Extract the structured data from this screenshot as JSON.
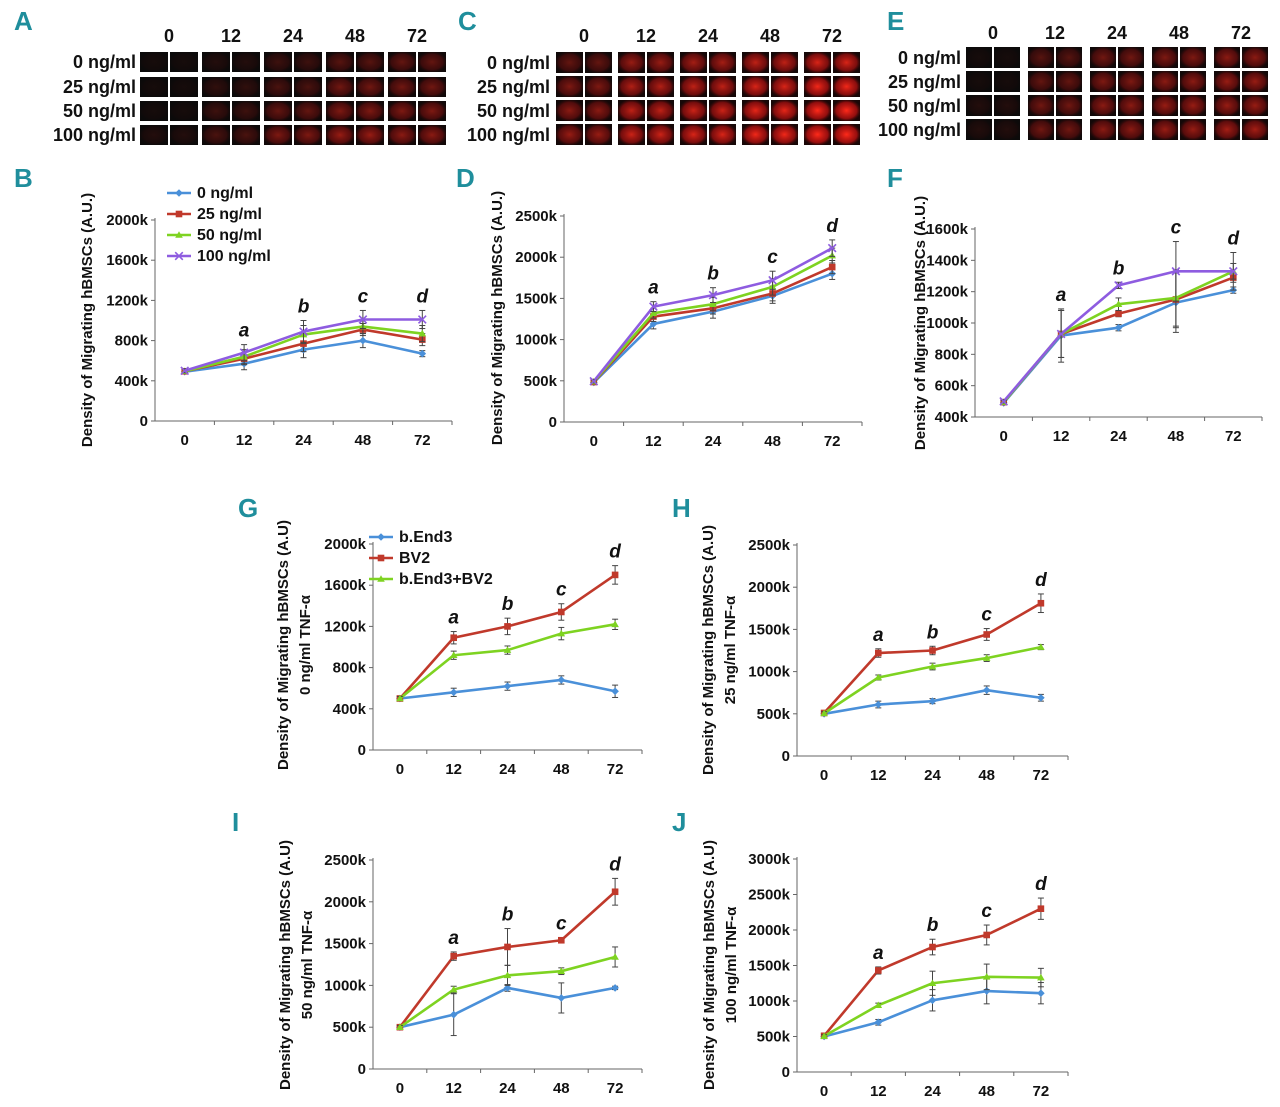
{
  "colors": {
    "panel_label": "#1f8e9c",
    "series": [
      "#4a90d9",
      "#c0392b",
      "#7ed321",
      "#8e5ce0"
    ],
    "axis": "#666666",
    "micro_bg": "#0a0a0a",
    "micro_cell": "#c81010"
  },
  "panel_labels": [
    "A",
    "B",
    "C",
    "D",
    "E",
    "F",
    "G",
    "H",
    "I",
    "J"
  ],
  "micrographs": [
    {
      "panel": "A",
      "time_headers": [
        "0",
        "12",
        "24",
        "48",
        "72"
      ],
      "row_labels": [
        "0 ng/ml",
        "25 ng/ml",
        "50 ng/ml",
        "100 ng/ml"
      ],
      "intensity": [
        [
          0.05,
          0.1,
          0.2,
          0.3,
          0.35
        ],
        [
          0.05,
          0.15,
          0.25,
          0.4,
          0.4
        ],
        [
          0.05,
          0.2,
          0.35,
          0.45,
          0.45
        ],
        [
          0.1,
          0.25,
          0.45,
          0.55,
          0.5
        ]
      ]
    },
    {
      "panel": "C",
      "time_headers": [
        "0",
        "12",
        "24",
        "48",
        "72"
      ],
      "row_labels": [
        "0 ng/ml",
        "25 ng/ml",
        "50 ng/ml",
        "100 ng/ml"
      ],
      "intensity": [
        [
          0.35,
          0.55,
          0.6,
          0.7,
          0.8
        ],
        [
          0.45,
          0.65,
          0.7,
          0.8,
          0.9
        ],
        [
          0.5,
          0.7,
          0.75,
          0.85,
          0.95
        ],
        [
          0.55,
          0.75,
          0.8,
          0.9,
          1.0
        ]
      ]
    },
    {
      "panel": "E",
      "time_headers": [
        "0",
        "12",
        "24",
        "48",
        "72"
      ],
      "row_labels": [
        "0 ng/ml",
        "25 ng/ml",
        "50 ng/ml",
        "100 ng/ml"
      ],
      "intensity": [
        [
          0.05,
          0.3,
          0.4,
          0.45,
          0.5
        ],
        [
          0.05,
          0.35,
          0.45,
          0.5,
          0.55
        ],
        [
          0.1,
          0.4,
          0.5,
          0.55,
          0.55
        ],
        [
          0.1,
          0.4,
          0.5,
          0.55,
          0.6
        ]
      ]
    }
  ],
  "chart_data": [
    {
      "panel": "B",
      "type": "line",
      "x": [
        "0",
        "12",
        "24",
        "48",
        "72"
      ],
      "ylim": [
        0,
        2000000
      ],
      "yticks": [
        "0",
        "400k",
        "800k",
        "1200k",
        "1600k",
        "2000k"
      ],
      "ylabel": [
        "Density of Migrating hBMSCs (A.U.)"
      ],
      "legend": true,
      "series": [
        {
          "name": "0 ng/ml",
          "values": [
            490000,
            570000,
            710000,
            800000,
            670000
          ]
        },
        {
          "name": "25 ng/ml",
          "values": [
            495000,
            620000,
            770000,
            910000,
            810000
          ]
        },
        {
          "name": "50 ng/ml",
          "values": [
            495000,
            640000,
            860000,
            940000,
            870000
          ]
        },
        {
          "name": "100 ng/ml",
          "values": [
            500000,
            680000,
            890000,
            1010000,
            1010000
          ]
        }
      ],
      "error": [
        [
          20000,
          60000,
          80000,
          70000,
          30000
        ],
        [
          20000,
          60000,
          80000,
          60000,
          60000
        ],
        [
          20000,
          70000,
          90000,
          70000,
          80000
        ],
        [
          20000,
          80000,
          110000,
          90000,
          90000
        ]
      ],
      "annotations": [
        "",
        "a",
        "b",
        "c",
        "d"
      ]
    },
    {
      "panel": "D",
      "type": "line",
      "x": [
        "0",
        "12",
        "24",
        "48",
        "72"
      ],
      "ylim": [
        0,
        2500000
      ],
      "yticks": [
        "0",
        "500k",
        "1000k",
        "1500k",
        "2000k",
        "2500k"
      ],
      "ylabel": [
        "Density of Migrating hBMSCs (A.U.)"
      ],
      "legend": false,
      "series": [
        {
          "name": "0 ng/ml",
          "values": [
            480000,
            1190000,
            1340000,
            1530000,
            1800000
          ]
        },
        {
          "name": "25 ng/ml",
          "values": [
            485000,
            1280000,
            1380000,
            1560000,
            1880000
          ]
        },
        {
          "name": "50 ng/ml",
          "values": [
            490000,
            1320000,
            1430000,
            1640000,
            2020000
          ]
        },
        {
          "name": "100 ng/ml",
          "values": [
            495000,
            1400000,
            1540000,
            1720000,
            2110000
          ]
        }
      ],
      "error": [
        [
          20000,
          60000,
          80000,
          90000,
          70000
        ],
        [
          20000,
          60000,
          70000,
          90000,
          80000
        ],
        [
          20000,
          60000,
          80000,
          100000,
          90000
        ],
        [
          20000,
          60000,
          90000,
          110000,
          100000
        ]
      ],
      "annotations": [
        "",
        "a",
        "b",
        "c",
        "d"
      ]
    },
    {
      "panel": "F",
      "type": "line",
      "x": [
        "0",
        "12",
        "24",
        "48",
        "72"
      ],
      "ylim": [
        400000,
        1600000
      ],
      "yticks": [
        "400k",
        "600k",
        "800k",
        "1000k",
        "1200k",
        "1400k",
        "1600k"
      ],
      "ylabel": [
        "Density of Migrating hBMSCs (A.U.)"
      ],
      "legend": false,
      "series": [
        {
          "name": "0 ng/ml",
          "values": [
            490000,
            920000,
            970000,
            1130000,
            1210000
          ]
        },
        {
          "name": "25 ng/ml",
          "values": [
            495000,
            930000,
            1060000,
            1150000,
            1290000
          ]
        },
        {
          "name": "50 ng/ml",
          "values": [
            495000,
            930000,
            1120000,
            1160000,
            1330000
          ]
        },
        {
          "name": "100 ng/ml",
          "values": [
            500000,
            930000,
            1240000,
            1330000,
            1330000
          ]
        }
      ],
      "error": [
        [
          10000,
          170000,
          20000,
          190000,
          20000
        ],
        [
          10000,
          150000,
          20000,
          180000,
          30000
        ],
        [
          10000,
          150000,
          40000,
          180000,
          50000
        ],
        [
          10000,
          150000,
          20000,
          190000,
          120000
        ]
      ],
      "annotations": [
        "",
        "a",
        "b",
        "c",
        "d"
      ]
    },
    {
      "panel": "G",
      "type": "line",
      "x": [
        "0",
        "12",
        "24",
        "48",
        "72"
      ],
      "ylim": [
        0,
        2000000
      ],
      "yticks": [
        "0",
        "400k",
        "800k",
        "1200k",
        "1600k",
        "2000k"
      ],
      "ylabel": [
        "Density of Migrating hBMSCs (A.U)",
        "0 ng/ml TNF-α"
      ],
      "legend": true,
      "series": [
        {
          "name": "b.End3",
          "values": [
            500000,
            560000,
            620000,
            680000,
            570000
          ]
        },
        {
          "name": "BV2",
          "values": [
            500000,
            1090000,
            1200000,
            1340000,
            1700000
          ]
        },
        {
          "name": "b.End3+BV2",
          "values": [
            500000,
            920000,
            970000,
            1130000,
            1220000
          ]
        }
      ],
      "error": [
        [
          20000,
          40000,
          40000,
          40000,
          60000
        ],
        [
          20000,
          60000,
          80000,
          80000,
          90000
        ],
        [
          20000,
          40000,
          40000,
          60000,
          50000
        ]
      ],
      "annotations": [
        "",
        "a",
        "b",
        "c",
        "d"
      ]
    },
    {
      "panel": "H",
      "type": "line",
      "x": [
        "0",
        "12",
        "24",
        "48",
        "72"
      ],
      "ylim": [
        0,
        2500000
      ],
      "yticks": [
        "0",
        "500k",
        "1000k",
        "1500k",
        "2000k",
        "2500k"
      ],
      "ylabel": [
        "Density of Migrating hBMSCs (A.U)",
        "25 ng/ml TNF-α"
      ],
      "legend": false,
      "series": [
        {
          "name": "b.End3",
          "values": [
            500000,
            610000,
            650000,
            780000,
            690000
          ]
        },
        {
          "name": "BV2",
          "values": [
            510000,
            1220000,
            1250000,
            1440000,
            1810000
          ]
        },
        {
          "name": "b.End3+BV2",
          "values": [
            505000,
            930000,
            1060000,
            1160000,
            1290000
          ]
        }
      ],
      "error": [
        [
          20000,
          40000,
          30000,
          50000,
          40000
        ],
        [
          20000,
          50000,
          50000,
          70000,
          110000
        ],
        [
          20000,
          30000,
          40000,
          40000,
          30000
        ]
      ],
      "annotations": [
        "",
        "a",
        "b",
        "c",
        "d"
      ]
    },
    {
      "panel": "I",
      "type": "line",
      "x": [
        "0",
        "12",
        "24",
        "48",
        "72"
      ],
      "ylim": [
        0,
        2500000
      ],
      "yticks": [
        "0",
        "500k",
        "1000k",
        "1500k",
        "2000k",
        "2500k"
      ],
      "ylabel": [
        "Density of Migrating hBMSCs (A.U)",
        "50 ng/ml TNF-α"
      ],
      "legend": false,
      "series": [
        {
          "name": "b.End3",
          "values": [
            500000,
            650000,
            970000,
            850000,
            970000
          ]
        },
        {
          "name": "BV2",
          "values": [
            500000,
            1350000,
            1460000,
            1540000,
            2120000
          ]
        },
        {
          "name": "b.End3+BV2",
          "values": [
            500000,
            950000,
            1120000,
            1170000,
            1340000
          ]
        }
      ],
      "error": [
        [
          20000,
          250000,
          40000,
          180000,
          20000
        ],
        [
          20000,
          50000,
          220000,
          30000,
          160000
        ],
        [
          20000,
          40000,
          120000,
          40000,
          120000
        ]
      ],
      "annotations": [
        "",
        "a",
        "b",
        "c",
        "d"
      ]
    },
    {
      "panel": "J",
      "type": "line",
      "x": [
        "0",
        "12",
        "24",
        "48",
        "72"
      ],
      "ylim": [
        0,
        3000000
      ],
      "yticks": [
        "0",
        "500k",
        "1000k",
        "1500k",
        "2000k",
        "2500k",
        "3000k"
      ],
      "ylabel": [
        "Density of Migrating hBMSCs (A.U)",
        "100 ng/ml TNF-α"
      ],
      "legend": false,
      "series": [
        {
          "name": "b.End3",
          "values": [
            500000,
            700000,
            1010000,
            1140000,
            1110000
          ]
        },
        {
          "name": "BV2",
          "values": [
            510000,
            1430000,
            1760000,
            1930000,
            2300000
          ]
        },
        {
          "name": "b.End3+BV2",
          "values": [
            505000,
            940000,
            1250000,
            1340000,
            1330000
          ]
        }
      ],
      "error": [
        [
          20000,
          40000,
          150000,
          180000,
          150000
        ],
        [
          20000,
          50000,
          110000,
          140000,
          150000
        ],
        [
          20000,
          30000,
          170000,
          180000,
          130000
        ]
      ],
      "annotations": [
        "",
        "a",
        "b",
        "c",
        "d"
      ]
    }
  ]
}
